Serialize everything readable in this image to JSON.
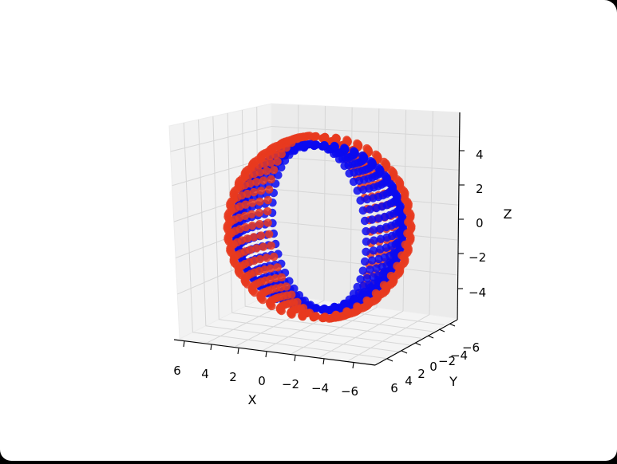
{
  "chart_data": {
    "type": "scatter3d",
    "title": "",
    "xlabel": "X",
    "ylabel": "Y",
    "zlabel": "Z",
    "xlim": [
      -6,
      6
    ],
    "ylim": [
      -6,
      6
    ],
    "zlim": [
      -5.5,
      5.5
    ],
    "x_ticks": [
      "6",
      "4",
      "2",
      "0",
      "−2",
      "−4",
      "−6"
    ],
    "y_ticks": [
      "6",
      "4",
      "2",
      "0",
      "−2",
      "−4",
      "−6"
    ],
    "z_ticks": [
      "4",
      "2",
      "0",
      "−2",
      "−4"
    ],
    "grid": true,
    "legend": "none",
    "series": [
      {
        "color": "#e8391f",
        "shape": "outer spherical shell of points, radius ~5.5, split into a left and a right half",
        "radius": 5.5,
        "rings": 25,
        "points_per_ring": 12
      },
      {
        "color": "#0a0af0",
        "shape": "inner spherical shell of points, radius ~5, split into a left and a right half",
        "radius": 5.0,
        "rings": 25,
        "points_per_ring": 12
      }
    ]
  }
}
